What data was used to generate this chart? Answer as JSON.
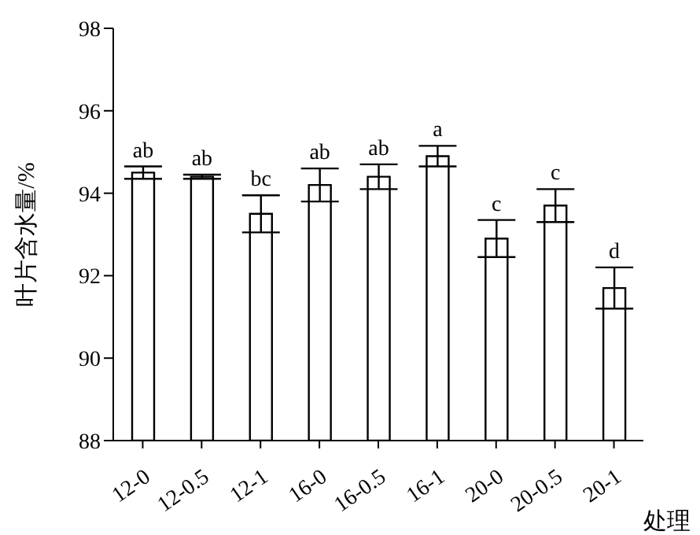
{
  "chart_data": {
    "type": "bar",
    "xlabel": "处理",
    "ylabel": "叶片含水量/%",
    "categories": [
      "12-0",
      "12-0.5",
      "12-1",
      "16-0",
      "16-0.5",
      "16-1",
      "20-0",
      "20-0.5",
      "20-1"
    ],
    "values": [
      94.5,
      94.4,
      93.5,
      94.2,
      94.4,
      94.9,
      92.9,
      93.7,
      91.7
    ],
    "errors": [
      0.15,
      0.05,
      0.45,
      0.4,
      0.3,
      0.25,
      0.45,
      0.4,
      0.5
    ],
    "value_labels": [
      "ab",
      "ab",
      "bc",
      "ab",
      "ab",
      "a",
      "c",
      "c",
      "d"
    ],
    "color": "#ffffff",
    "ylim": [
      88,
      98
    ],
    "yticks": [
      88,
      90,
      92,
      94,
      96,
      98
    ],
    "grid": false,
    "legend": false
  }
}
